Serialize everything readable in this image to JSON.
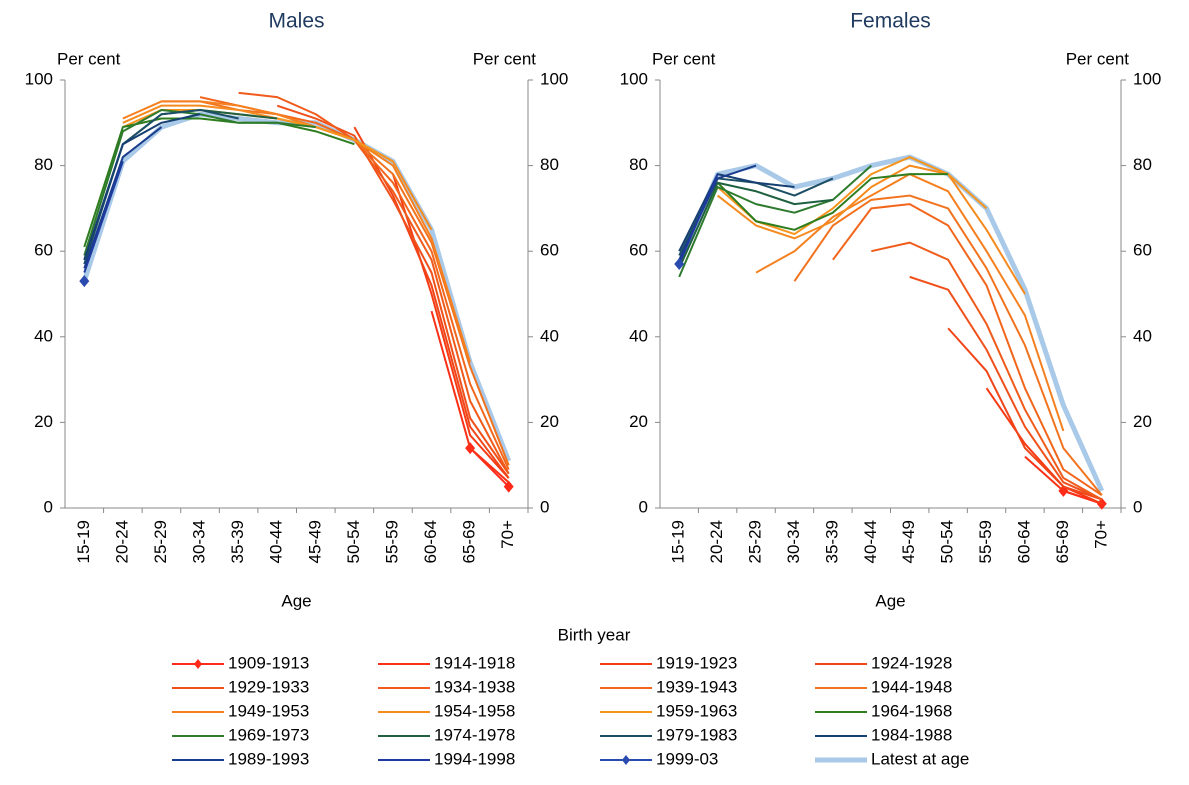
{
  "legend_title": "Birth year",
  "chart_data": [
    {
      "type": "line",
      "title": "Males",
      "ylabel": "Per cent",
      "y2label": "Per cent",
      "xlabel": "Age",
      "categories": [
        "15-19",
        "20-24",
        "25-29",
        "30-34",
        "35-39",
        "40-44",
        "45-49",
        "50-54",
        "55-59",
        "60-64",
        "65-69",
        "70+"
      ],
      "ylim": [
        0,
        100
      ],
      "yticks": [
        0,
        20,
        40,
        60,
        80,
        100
      ],
      "y2lim": [
        0,
        100
      ],
      "y2ticks": [
        0,
        20,
        40,
        60,
        80,
        100
      ],
      "grid": false,
      "series": [
        {
          "name": "1909-1913",
          "color": "#ff2a1a",
          "marker": "diamond",
          "values": [
            null,
            null,
            null,
            null,
            null,
            null,
            null,
            null,
            null,
            null,
            14,
            5
          ]
        },
        {
          "name": "1914-1918",
          "color": "#fa3017",
          "values": [
            null,
            null,
            null,
            null,
            null,
            null,
            null,
            null,
            null,
            46,
            14,
            6
          ]
        },
        {
          "name": "1919-1923",
          "color": "#f53a14",
          "values": [
            null,
            null,
            null,
            null,
            null,
            null,
            null,
            null,
            78,
            50,
            17,
            7
          ]
        },
        {
          "name": "1924-1928",
          "color": "#f04518",
          "values": [
            null,
            null,
            null,
            null,
            null,
            null,
            null,
            89,
            73,
            52,
            19,
            7
          ]
        },
        {
          "name": "1929-1933",
          "color": "#f0501a",
          "values": [
            null,
            null,
            null,
            null,
            null,
            94,
            91,
            87,
            72,
            55,
            21,
            8
          ]
        },
        {
          "name": "1934-1938",
          "color": "#f05a1a",
          "values": [
            null,
            null,
            null,
            null,
            97,
            96,
            92,
            86,
            74,
            58,
            25,
            8
          ]
        },
        {
          "name": "1939-1943",
          "color": "#f2661c",
          "values": [
            null,
            null,
            null,
            96,
            94,
            92,
            90,
            86,
            76,
            60,
            29,
            9
          ]
        },
        {
          "name": "1944-1948",
          "color": "#f2731e",
          "values": [
            null,
            null,
            95,
            95,
            93,
            92,
            89,
            86,
            78,
            62,
            33,
            10
          ]
        },
        {
          "name": "1949-1953",
          "color": "#f5801f",
          "values": [
            null,
            91,
            95,
            95,
            94,
            92,
            89,
            86,
            80,
            63,
            34,
            null
          ]
        },
        {
          "name": "1954-1958",
          "color": "#f58a1e",
          "values": [
            null,
            90,
            94,
            94,
            93,
            91,
            89,
            86,
            81,
            65,
            null,
            null
          ]
        },
        {
          "name": "1959-1963",
          "color": "#f5951e",
          "values": [
            null,
            89,
            93,
            93,
            92,
            91,
            89,
            86,
            81,
            null,
            null,
            null
          ]
        },
        {
          "name": "1964-1968",
          "color": "#2e7d1e",
          "values": [
            61,
            89,
            91,
            91,
            90,
            90,
            88,
            85,
            null,
            null,
            null,
            null
          ]
        },
        {
          "name": "1969-1973",
          "color": "#2e7a2e",
          "values": [
            59,
            88,
            93,
            92,
            90,
            90,
            89,
            null,
            null,
            null,
            null,
            null
          ]
        },
        {
          "name": "1974-1978",
          "color": "#1e6040",
          "values": [
            58,
            85,
            92,
            93,
            92,
            91,
            null,
            null,
            null,
            null,
            null,
            null
          ]
        },
        {
          "name": "1979-1983",
          "color": "#1c4f66",
          "values": [
            57,
            85,
            92,
            93,
            91,
            null,
            null,
            null,
            null,
            null,
            null,
            null
          ]
        },
        {
          "name": "1984-1988",
          "color": "#163f72",
          "values": [
            58,
            85,
            90,
            92,
            null,
            null,
            null,
            null,
            null,
            null,
            null,
            null
          ]
        },
        {
          "name": "1989-1993",
          "color": "#1a3c8c",
          "values": [
            56,
            82,
            89,
            null,
            null,
            null,
            null,
            null,
            null,
            null,
            null,
            null
          ]
        },
        {
          "name": "1994-1998",
          "color": "#1e3aa0",
          "values": [
            55,
            81,
            null,
            null,
            null,
            null,
            null,
            null,
            null,
            null,
            null,
            null
          ]
        },
        {
          "name": "1999-03",
          "color": "#2a4ab0",
          "marker": "diamond",
          "values": [
            53,
            null,
            null,
            null,
            null,
            null,
            null,
            null,
            null,
            null,
            null,
            null
          ]
        },
        {
          "name": "Latest at age",
          "color": "#a9c9e8",
          "line_width": 5,
          "values": [
            53,
            81,
            89,
            92,
            91,
            90,
            90,
            86,
            81,
            65,
            34,
            11
          ]
        }
      ]
    },
    {
      "type": "line",
      "title": "Females",
      "ylabel": "Per cent",
      "y2label": "Per cent",
      "xlabel": "Age",
      "categories": [
        "15-19",
        "20-24",
        "25-29",
        "30-34",
        "35-39",
        "40-44",
        "45-49",
        "50-54",
        "55-59",
        "60-64",
        "65-69",
        "70+"
      ],
      "ylim": [
        0,
        100
      ],
      "yticks": [
        0,
        20,
        40,
        60,
        80,
        100
      ],
      "y2lim": [
        0,
        100
      ],
      "y2ticks": [
        0,
        20,
        40,
        60,
        80,
        100
      ],
      "grid": false,
      "series": [
        {
          "name": "1909-1913",
          "color": "#ff2a1a",
          "marker": "diamond",
          "values": [
            null,
            null,
            null,
            null,
            null,
            null,
            null,
            null,
            null,
            null,
            4,
            1
          ]
        },
        {
          "name": "1914-1918",
          "color": "#fa3017",
          "values": [
            null,
            null,
            null,
            null,
            null,
            null,
            null,
            null,
            null,
            12,
            4,
            1
          ]
        },
        {
          "name": "1919-1923",
          "color": "#f53a14",
          "values": [
            null,
            null,
            null,
            null,
            null,
            null,
            null,
            null,
            28,
            15,
            5,
            1
          ]
        },
        {
          "name": "1924-1928",
          "color": "#f04518",
          "values": [
            null,
            null,
            null,
            null,
            null,
            null,
            null,
            42,
            32,
            14,
            5,
            2
          ]
        },
        {
          "name": "1929-1933",
          "color": "#f0501a",
          "values": [
            null,
            null,
            null,
            null,
            null,
            null,
            54,
            51,
            37,
            19,
            6,
            2
          ]
        },
        {
          "name": "1934-1938",
          "color": "#f05a1a",
          "values": [
            null,
            null,
            null,
            null,
            null,
            60,
            62,
            58,
            43,
            23,
            7,
            2
          ]
        },
        {
          "name": "1939-1943",
          "color": "#f2661c",
          "values": [
            null,
            null,
            null,
            null,
            58,
            70,
            71,
            66,
            52,
            28,
            9,
            3
          ]
        },
        {
          "name": "1944-1948",
          "color": "#f2731e",
          "values": [
            null,
            null,
            null,
            53,
            66,
            72,
            73,
            70,
            56,
            38,
            14,
            3
          ]
        },
        {
          "name": "1949-1953",
          "color": "#f5801f",
          "values": [
            null,
            null,
            55,
            60,
            68,
            73,
            78,
            74,
            60,
            45,
            18,
            null
          ]
        },
        {
          "name": "1954-1958",
          "color": "#f58a1e",
          "values": [
            null,
            73,
            66,
            63,
            67,
            75,
            80,
            78,
            65,
            50,
            null,
            null
          ]
        },
        {
          "name": "1959-1963",
          "color": "#f5951e",
          "values": [
            null,
            75,
            67,
            64,
            70,
            78,
            82,
            78,
            70,
            null,
            null,
            null
          ]
        },
        {
          "name": "1964-1968",
          "color": "#2e7d1e",
          "values": [
            null,
            76,
            67,
            65,
            69,
            77,
            78,
            78,
            null,
            null,
            null,
            null
          ]
        },
        {
          "name": "1969-1973",
          "color": "#2e7a2e",
          "values": [
            54,
            75,
            71,
            69,
            72,
            80,
            null,
            null,
            null,
            null,
            null,
            null
          ]
        },
        {
          "name": "1974-1978",
          "color": "#1e6040",
          "values": [
            56,
            76,
            74,
            71,
            72,
            null,
            null,
            null,
            null,
            null,
            null,
            null
          ]
        },
        {
          "name": "1979-1983",
          "color": "#1c4f66",
          "values": [
            59,
            77,
            76,
            73,
            77,
            null,
            null,
            null,
            null,
            null,
            null,
            null
          ]
        },
        {
          "name": "1984-1988",
          "color": "#163f72",
          "values": [
            60,
            78,
            76,
            75,
            null,
            null,
            null,
            null,
            null,
            null,
            null,
            null
          ]
        },
        {
          "name": "1989-1993",
          "color": "#1a3c8c",
          "values": [
            58,
            77,
            80,
            null,
            null,
            null,
            null,
            null,
            null,
            null,
            null,
            null
          ]
        },
        {
          "name": "1994-1998",
          "color": "#1e3aa0",
          "values": [
            57,
            78,
            null,
            null,
            null,
            null,
            null,
            null,
            null,
            null,
            null,
            null
          ]
        },
        {
          "name": "1999-03",
          "color": "#2a4ab0",
          "marker": "diamond",
          "values": [
            57,
            null,
            null,
            null,
            null,
            null,
            null,
            null,
            null,
            null,
            null,
            null
          ]
        },
        {
          "name": "Latest at age",
          "color": "#a9c9e8",
          "line_width": 5,
          "values": [
            57,
            78,
            80,
            75,
            77,
            80,
            82,
            78,
            70,
            51,
            24,
            4
          ]
        }
      ]
    }
  ]
}
